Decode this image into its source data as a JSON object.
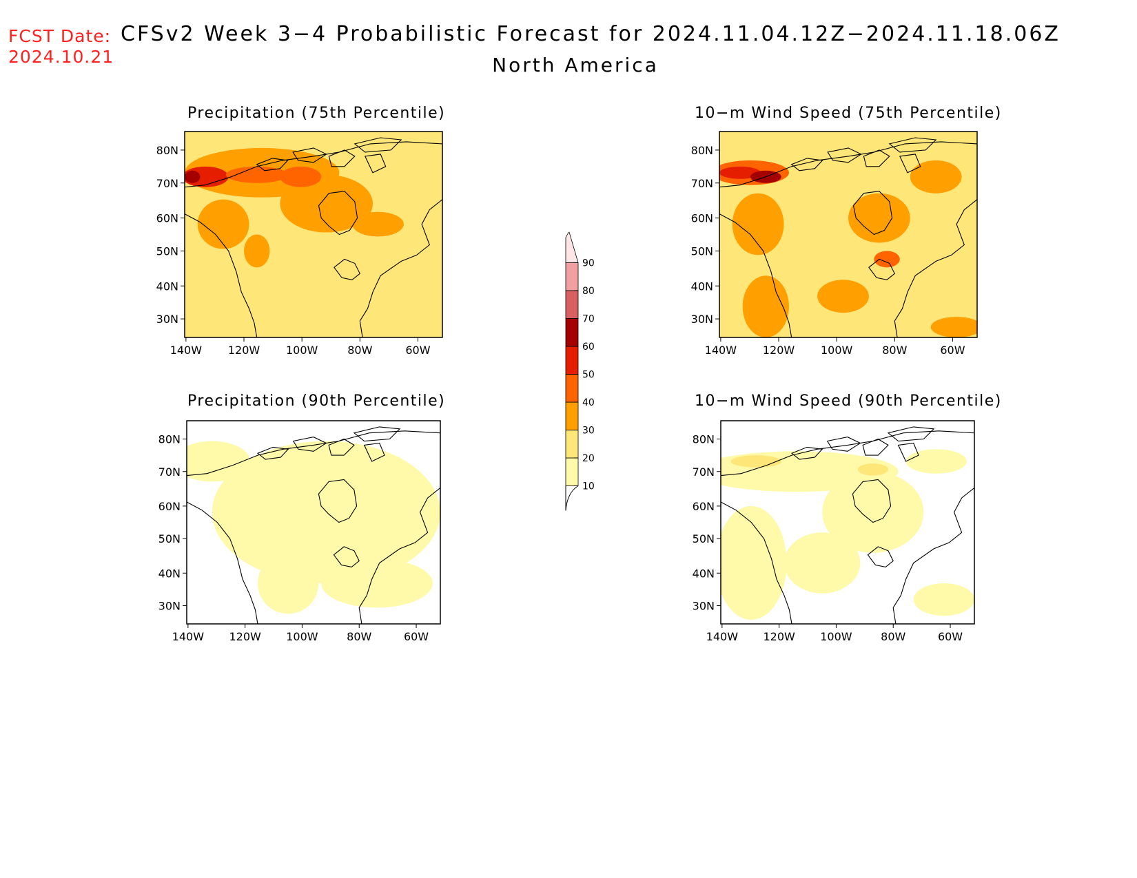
{
  "header": {
    "fcst_label": "FCST Date:",
    "fcst_date": "2024.10.21",
    "title": "CFSv2 Week 3−4 Probabilistic Forecast for 2024.11.04.12Z−2024.11.18.06Z",
    "region": "North America"
  },
  "panels": [
    {
      "id": "precip75",
      "title": "Precipitation (75th Percentile)",
      "intensity": "high"
    },
    {
      "id": "wind75",
      "title": "10−m Wind Speed (75th Percentile)",
      "intensity": "high"
    },
    {
      "id": "precip90",
      "title": "Precipitation (90th Percentile)",
      "intensity": "low"
    },
    {
      "id": "wind90",
      "title": "10−m Wind Speed (90th Percentile)",
      "intensity": "low"
    }
  ],
  "axes": {
    "lat_labels": [
      "80N",
      "70N",
      "60N",
      "50N",
      "40N",
      "30N"
    ],
    "lon_labels": [
      "140W",
      "120W",
      "100W",
      "80W",
      "60W"
    ]
  },
  "colorbar": {
    "levels": [
      "10",
      "20",
      "30",
      "40",
      "50",
      "60",
      "70",
      "80",
      "90"
    ],
    "colors": [
      "#fffaaa",
      "#ffe678",
      "#ffa000",
      "#ff6400",
      "#e61e00",
      "#a50000",
      "#d96060",
      "#f0a0a0",
      "#ffe6e6"
    ]
  }
}
